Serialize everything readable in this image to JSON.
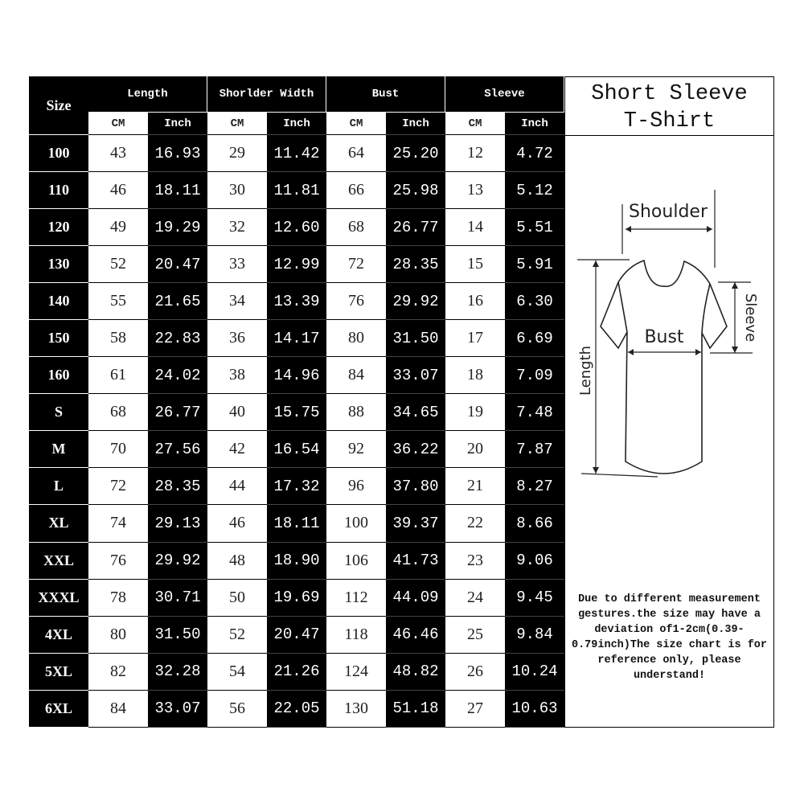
{
  "headers": {
    "size": "Size",
    "groups": [
      "Length",
      "Shorlder Width",
      "Bust",
      "Sleeve"
    ],
    "units": [
      "CM",
      "Inch"
    ]
  },
  "rows": [
    [
      "100",
      "43",
      "16.93",
      "29",
      "11.42",
      "64",
      "25.20",
      "12",
      "4.72"
    ],
    [
      "110",
      "46",
      "18.11",
      "30",
      "11.81",
      "66",
      "25.98",
      "13",
      "5.12"
    ],
    [
      "120",
      "49",
      "19.29",
      "32",
      "12.60",
      "68",
      "26.77",
      "14",
      "5.51"
    ],
    [
      "130",
      "52",
      "20.47",
      "33",
      "12.99",
      "72",
      "28.35",
      "15",
      "5.91"
    ],
    [
      "140",
      "55",
      "21.65",
      "34",
      "13.39",
      "76",
      "29.92",
      "16",
      "6.30"
    ],
    [
      "150",
      "58",
      "22.83",
      "36",
      "14.17",
      "80",
      "31.50",
      "17",
      "6.69"
    ],
    [
      "160",
      "61",
      "24.02",
      "38",
      "14.96",
      "84",
      "33.07",
      "18",
      "7.09"
    ],
    [
      "S",
      "68",
      "26.77",
      "40",
      "15.75",
      "88",
      "34.65",
      "19",
      "7.48"
    ],
    [
      "M",
      "70",
      "27.56",
      "42",
      "16.54",
      "92",
      "36.22",
      "20",
      "7.87"
    ],
    [
      "L",
      "72",
      "28.35",
      "44",
      "17.32",
      "96",
      "37.80",
      "21",
      "8.27"
    ],
    [
      "XL",
      "74",
      "29.13",
      "46",
      "18.11",
      "100",
      "39.37",
      "22",
      "8.66"
    ],
    [
      "XXL",
      "76",
      "29.92",
      "48",
      "18.90",
      "106",
      "41.73",
      "23",
      "9.06"
    ],
    [
      "XXXL",
      "78",
      "30.71",
      "50",
      "19.69",
      "112",
      "44.09",
      "24",
      "9.45"
    ],
    [
      "4XL",
      "80",
      "31.50",
      "52",
      "20.47",
      "118",
      "46.46",
      "25",
      "9.84"
    ],
    [
      "5XL",
      "82",
      "32.28",
      "54",
      "21.26",
      "124",
      "48.82",
      "26",
      "10.24"
    ],
    [
      "6XL",
      "84",
      "33.07",
      "56",
      "22.05",
      "130",
      "51.18",
      "27",
      "10.63"
    ]
  ],
  "panel": {
    "title_line1": "Short Sleeve",
    "title_line2": "T-Shirt",
    "diagram": {
      "shoulder": "Shoulder",
      "bust": "Bust",
      "sleeve": "Sleeve",
      "length": "Length"
    },
    "note": "Due to different measurement gestures.the size may have a deviation of1-2cm(0.39-0.79inch)The size chart is for reference only, please understand!"
  }
}
